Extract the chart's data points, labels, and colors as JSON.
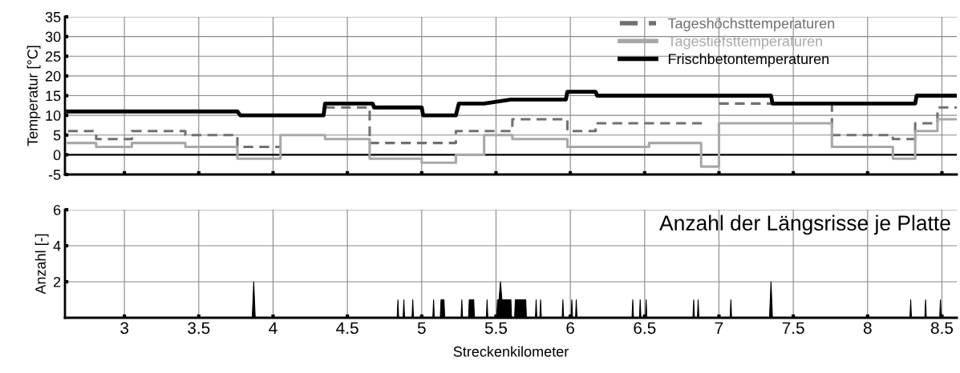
{
  "chart_data": [
    {
      "type": "step",
      "ylabel": "Temperatur [°C]",
      "xlim": [
        2.6,
        8.6
      ],
      "xticks": [
        3,
        3.5,
        4,
        4.5,
        5,
        5.5,
        6,
        6.5,
        7,
        7.5,
        8,
        8.5
      ],
      "ylim": [
        -5,
        35
      ],
      "yticks": [
        -5,
        0,
        5,
        10,
        15,
        20,
        25,
        30,
        35
      ],
      "grid": true,
      "legend": "top right",
      "tick_labels": "y",
      "ref_lines": [
        {
          "axis": "y",
          "value": 0,
          "color": "#000000"
        }
      ],
      "series": [
        {
          "name": "Tageshöchsttemperaturen",
          "color": "#707070",
          "line_style": "dashed",
          "x": [
            2.62,
            2.81,
            3.05,
            3.41,
            3.76,
            4.05,
            4.35,
            4.65,
            5.23,
            5.61,
            5.98,
            6.17,
            6.89,
            7.0,
            7.76,
            8.17,
            8.32,
            8.47,
            8.6
          ],
          "values": [
            6,
            4,
            6,
            5,
            2,
            null,
            12,
            3,
            6,
            9,
            6,
            8,
            null,
            13,
            5,
            4,
            8,
            12,
            12
          ]
        },
        {
          "name": "Tagestiefsttemperaturen",
          "color": "#a8a8a8",
          "line_style": "solid",
          "x": [
            2.62,
            2.81,
            3.05,
            3.41,
            3.76,
            4.05,
            4.35,
            4.65,
            5.0,
            5.23,
            5.42,
            5.61,
            5.98,
            6.53,
            6.88,
            7.0,
            7.76,
            8.17,
            8.32,
            8.47,
            8.6
          ],
          "values": [
            3,
            2,
            3,
            2,
            -1,
            5,
            4,
            -1,
            -2,
            0,
            5,
            4,
            2,
            3,
            -3,
            8,
            2,
            -1,
            6,
            9,
            9
          ]
        },
        {
          "name": "Frischbetontemperaturen",
          "color": "#000000",
          "type": "line",
          "line_style": "solid",
          "x": [
            2.62,
            3.76,
            3.78,
            4.34,
            4.35,
            4.67,
            4.68,
            5.0,
            5.01,
            5.23,
            5.25,
            5.42,
            5.6,
            5.97,
            5.98,
            6.17,
            6.18,
            7.35,
            7.36,
            8.32,
            8.33,
            8.6
          ],
          "values": [
            11,
            11,
            10,
            10,
            13,
            13,
            12,
            12,
            10,
            10,
            13,
            13,
            14,
            14,
            16,
            16,
            15,
            15,
            13,
            13,
            15,
            15
          ]
        }
      ]
    },
    {
      "type": "area",
      "title": "Anzahl der Längsrisse je Platte",
      "ylabel": "Anzahl [-]",
      "xlabel": "Streckenkilometer",
      "xlim": [
        2.6,
        8.6
      ],
      "xticks": [
        3,
        3.5,
        4,
        4.5,
        5,
        5.5,
        6,
        6.5,
        7,
        7.5,
        8,
        8.5
      ],
      "ylim": [
        0,
        6
      ],
      "yticks": [
        2,
        4,
        6
      ],
      "grid": true,
      "series": [
        {
          "color": "#000000",
          "x": [
            2.6,
            3.86,
            3.87,
            3.88,
            4.835,
            4.84,
            4.845,
            4.875,
            4.88,
            4.885,
            4.935,
            4.94,
            4.945,
            5.075,
            5.08,
            5.085,
            5.125,
            5.13,
            5.15,
            5.155,
            5.265,
            5.27,
            5.275,
            5.315,
            5.32,
            5.35,
            5.355,
            5.435,
            5.44,
            5.445,
            5.505,
            5.51,
            5.52,
            5.53,
            5.54,
            5.55,
            5.6,
            5.605,
            5.625,
            5.63,
            5.7,
            5.705,
            5.765,
            5.77,
            5.775,
            5.795,
            5.8,
            5.805,
            5.945,
            5.95,
            5.955,
            6.005,
            6.01,
            6.015,
            6.035,
            6.04,
            6.045,
            6.415,
            6.42,
            6.425,
            6.465,
            6.47,
            6.475,
            6.505,
            6.51,
            6.515,
            6.825,
            6.83,
            6.835,
            6.855,
            6.86,
            6.865,
            7.075,
            7.08,
            7.085,
            7.34,
            7.35,
            7.36,
            8.285,
            8.29,
            8.295,
            8.385,
            8.39,
            8.395,
            8.485,
            8.49,
            8.495,
            8.6
          ],
          "values": [
            0,
            0,
            2,
            0,
            0,
            1,
            0,
            0,
            1,
            0,
            0,
            1,
            0,
            0,
            1,
            0,
            0,
            1,
            1,
            0,
            0,
            1,
            0,
            0,
            1,
            1,
            0,
            0,
            1,
            0,
            0,
            1,
            1,
            2,
            1,
            1,
            1,
            0,
            0,
            1,
            1,
            0,
            0,
            1,
            0,
            0,
            1,
            0,
            0,
            1,
            0,
            0,
            1,
            0,
            0,
            1,
            0,
            0,
            1,
            0,
            0,
            1,
            0,
            0,
            1,
            0,
            0,
            1,
            0,
            0,
            1,
            0,
            0,
            1,
            0,
            0,
            2,
            0,
            0,
            1,
            0,
            0,
            1,
            0,
            0,
            1,
            0,
            0
          ]
        }
      ]
    }
  ]
}
